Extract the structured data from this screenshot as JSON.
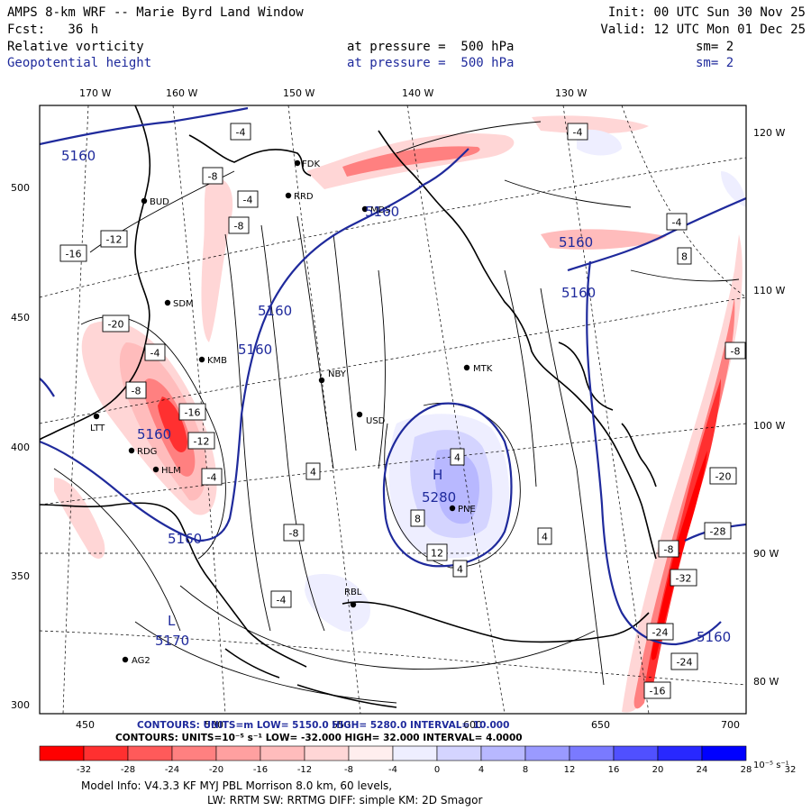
{
  "header": {
    "title": "AMPS 8-km WRF -- Marie Byrd Land Window",
    "init": "Init: 00 UTC Sun 30 Nov 25",
    "forecast": "Fcst:   36 h",
    "valid": "Valid: 12 UTC Mon 01 Dec 25",
    "field1": {
      "name": "Relative vorticity",
      "level": "at pressure =  500 hPa",
      "smooth": "sm= 2"
    },
    "field2": {
      "name": "Geopotential height",
      "level": "at pressure =  500 hPa",
      "smooth": "sm= 2"
    }
  },
  "axes": {
    "top_labels": [
      "170 W",
      "160 W",
      "150 W",
      "140 W",
      "130 W"
    ],
    "right_labels": [
      "120 W",
      "110 W",
      "100 W",
      "90 W",
      "80 W"
    ],
    "left_labels": [
      "500",
      "450",
      "400",
      "350",
      "300"
    ],
    "bottom_labels": [
      "450",
      "500",
      "550",
      "600",
      "650",
      "700"
    ]
  },
  "stations": [
    "BUD",
    "FDK",
    "RRD",
    "MDS",
    "SDM",
    "KMB",
    "NBY",
    "MTK",
    "USD",
    "LTT",
    "RDG",
    "HLM",
    "PNE",
    "RBL",
    "AG2"
  ],
  "height_contours": {
    "labels": [
      "5160",
      "5160",
      "5160",
      "5160",
      "5160",
      "5160",
      "5160",
      "5170",
      "5160",
      "5160"
    ],
    "high_label": "H",
    "high_value": "5280",
    "low_label": "L"
  },
  "vorticity_labels": [
    "-4",
    "-8",
    "-4",
    "-8",
    "-12",
    "-16",
    "-20",
    "-4",
    "-8",
    "-16",
    "-12",
    "-4",
    "-8",
    "4",
    "8",
    "12",
    "4",
    "4",
    "-4",
    "-24",
    "-28",
    "-32",
    "-24",
    "-16",
    "-20",
    "-8",
    "-4",
    "-4",
    "8",
    "4",
    "-8"
  ],
  "footer": {
    "contours_height": "CONTOURS: UNITS=m  LOW= 5150.0       HIGH= 5280.0       INTERVAL= 10.000",
    "contours_vort": "CONTOURS:  UNITS=10⁻⁵ s⁻¹  LOW= -32.000        HIGH=  32.000       INTERVAL=  4.0000",
    "colorbar_ticks": [
      "-32",
      "-28",
      "-24",
      "-20",
      "-16",
      "-12",
      "-8",
      "-4",
      "0",
      "4",
      "8",
      "12",
      "16",
      "20",
      "24",
      "28",
      "32"
    ],
    "colorbar_units": "10⁻⁵ s⁻¹",
    "model_info1": "Model Info: V4.3.3   KF     MYJ PBL  Morrison        8.0 km,  60 levels,",
    "model_info2": "LW: RRTM SW: RRTMG   DIFF: simple KM: 2D Smagor"
  },
  "colors": {
    "height_contour": "#1f2a9c",
    "vort_neg": [
      "#ff0000",
      "#ff3030",
      "#ff5a5a",
      "#ff8080",
      "#ffa0a0",
      "#ffbcbc",
      "#ffd6d6",
      "#ffeeee"
    ],
    "vort_pos": [
      "#eeeeff",
      "#d4d4ff",
      "#b8b8ff",
      "#9a9aff",
      "#7a7aff",
      "#5050ff",
      "#2828ff",
      "#0000ff"
    ]
  }
}
